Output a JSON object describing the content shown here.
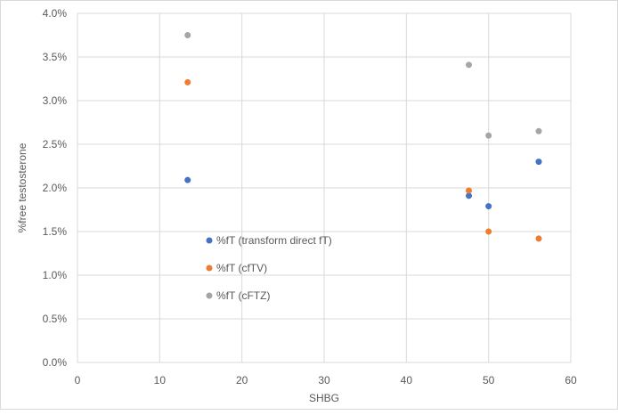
{
  "chart_data": {
    "type": "scatter",
    "xlabel": "SHBG",
    "ylabel": "%free testosterone",
    "xlim": [
      0,
      60
    ],
    "ylim": [
      0,
      0.04
    ],
    "x_ticks": [
      0,
      10,
      20,
      30,
      40,
      50,
      60
    ],
    "y_ticks": [
      0.0,
      0.005,
      0.01,
      0.015,
      0.02,
      0.025,
      0.03,
      0.035,
      0.04
    ],
    "x_tick_labels": [
      "0",
      "10",
      "20",
      "30",
      "40",
      "50",
      "60"
    ],
    "y_tick_labels": [
      "0.0%",
      "0.5%",
      "1.0%",
      "1.5%",
      "2.0%",
      "2.5%",
      "3.0%",
      "3.5%",
      "4.0%"
    ],
    "grid": true,
    "legend_position": "inside-left",
    "series": [
      {
        "name": "%fT (transform direct fT)",
        "color": "#4472c4",
        "points": [
          {
            "x": 13.4,
            "y": 0.0209
          },
          {
            "x": 47.6,
            "y": 0.0191
          },
          {
            "x": 50.0,
            "y": 0.0179
          },
          {
            "x": 56.1,
            "y": 0.023
          }
        ]
      },
      {
        "name": "%fT (cfTV)",
        "color": "#ed7d31",
        "points": [
          {
            "x": 13.4,
            "y": 0.0321
          },
          {
            "x": 47.6,
            "y": 0.0197
          },
          {
            "x": 50.0,
            "y": 0.015
          },
          {
            "x": 56.1,
            "y": 0.0142
          }
        ]
      },
      {
        "name": "%fT (cFTZ)",
        "color": "#a5a5a5",
        "points": [
          {
            "x": 13.4,
            "y": 0.0375
          },
          {
            "x": 47.6,
            "y": 0.0341
          },
          {
            "x": 50.0,
            "y": 0.026
          },
          {
            "x": 56.1,
            "y": 0.0265
          }
        ]
      }
    ]
  }
}
